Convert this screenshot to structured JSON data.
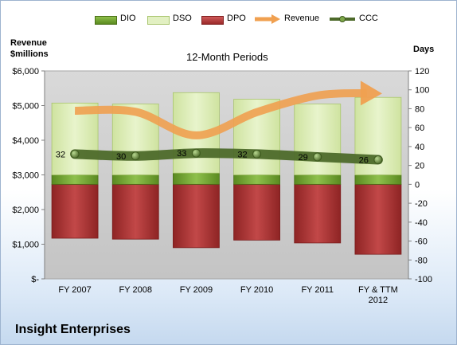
{
  "chart_data": {
    "type": "bar",
    "title": "12-Month Periods",
    "company": "Insight Enterprises",
    "left_axis_label_line1": "Revenue",
    "left_axis_label_line2": "$millions",
    "right_axis_label": "Days",
    "categories": [
      "FY 2007",
      "FY 2008",
      "FY 2009",
      "FY 2010",
      "FY 2011",
      "FY & TTM 2012"
    ],
    "category_lines": [
      [
        "FY 2007"
      ],
      [
        "FY 2008"
      ],
      [
        "FY 2009"
      ],
      [
        "FY 2010"
      ],
      [
        "FY 2011"
      ],
      [
        "FY & TTM",
        "2012"
      ]
    ],
    "left_axis": {
      "min": 0,
      "max": 6000,
      "ticks": [
        0,
        1000,
        2000,
        3000,
        4000,
        5000,
        6000
      ],
      "tick_labels": [
        "$-",
        "$1,000",
        "$2,000",
        "$3,000",
        "$4,000",
        "$5,000",
        "$6,000"
      ]
    },
    "right_axis": {
      "min": -100,
      "max": 120,
      "ticks": [
        -100,
        -80,
        -60,
        -40,
        -20,
        0,
        20,
        40,
        60,
        80,
        100,
        120
      ],
      "tick_labels": [
        "-100",
        "-80",
        "-60",
        "-40",
        "-20",
        "0",
        "20",
        "40",
        "60",
        "80",
        "100",
        "120"
      ]
    },
    "series": [
      {
        "name": "DIO",
        "axis": "days",
        "kind": "stacked-bar",
        "values": [
          10,
          10,
          12,
          10,
          10,
          10
        ],
        "color": "#6a9a2a"
      },
      {
        "name": "DSO",
        "axis": "days",
        "kind": "stacked-bar",
        "values": [
          76,
          75,
          85,
          80,
          75,
          82
        ],
        "color": "#d4e8a4"
      },
      {
        "name": "DPO",
        "axis": "days",
        "kind": "negative-bar",
        "values": [
          -57,
          -58,
          -67,
          -59,
          -62,
          -74
        ],
        "color": "#b23a3a"
      },
      {
        "name": "Revenue",
        "axis": "millions",
        "kind": "line-arrow",
        "values": [
          4850,
          4820,
          4140,
          4810,
          5290,
          5370
        ],
        "color": "#f0a050"
      },
      {
        "name": "CCC",
        "axis": "days",
        "kind": "line-markers",
        "values": [
          32,
          30,
          33,
          32,
          29,
          26
        ],
        "labels": [
          "32",
          "30",
          "33",
          "32",
          "29",
          "26"
        ],
        "color": "#4d6a2a"
      }
    ],
    "legend_placement": "top",
    "grid": false
  }
}
